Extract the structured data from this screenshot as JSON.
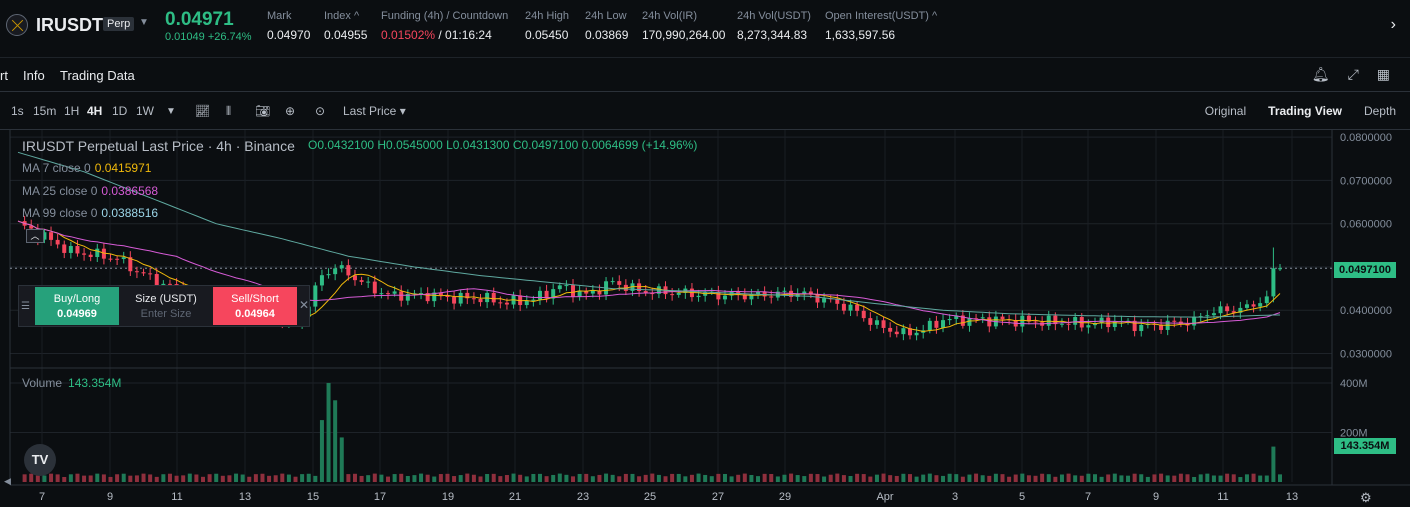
{
  "ticker": {
    "symbol": "IRUSDT",
    "badge": "Perp",
    "last_price": "0.04971",
    "change": "0.01049 +26.74%",
    "stats": [
      {
        "label": "Mark",
        "value": "0.04970"
      },
      {
        "label": "Index ^",
        "value": "0.04955"
      },
      {
        "label": "Funding (4h) / Countdown",
        "value_red": "0.01502%",
        "value": " / 01:16:24"
      },
      {
        "label": "24h High",
        "value": "0.05450"
      },
      {
        "label": "24h Low",
        "value": "0.03869"
      },
      {
        "label": "24h Vol(IR)",
        "value": "170,990,264.00"
      },
      {
        "label": "24h Vol(USDT)",
        "value": "8,273,344.83"
      },
      {
        "label": "Open Interest(USDT) ^",
        "value": "1,633,597.56"
      }
    ]
  },
  "tabs": [
    "rt",
    "Info",
    "Trading Data"
  ],
  "toolbar": {
    "intervals": [
      "1s",
      "15m",
      "1H",
      "4H",
      "1D",
      "1W"
    ],
    "active_interval": "4H",
    "price_type": "Last Price ▾",
    "views": [
      "Original",
      "Trading View",
      "Depth"
    ],
    "active_view": "Trading View"
  },
  "legend": {
    "title": "IRUSDT Perpetual Last Price · 4h · Binance",
    "ohlc": "O0.0432100 H0.0545000 L0.0431300 C0.0497100 0.0064699 (+14.96%)",
    "ma": [
      {
        "label": "MA 7 close 0",
        "value": "0.0415971",
        "color": "#f0b90b"
      },
      {
        "label": "MA 25 close 0",
        "value": "0.0386568",
        "color": "#d65bd6"
      },
      {
        "label": "MA 99 close 0",
        "value": "0.0388516",
        "color": "#9bd5e8"
      }
    ]
  },
  "volume": {
    "label": "Volume",
    "value": "143.354M"
  },
  "price_tag": "0.0497100",
  "vol_tag": "143.354M",
  "quick_order": {
    "buy_label": "Buy/Long",
    "buy_price": "0.04969",
    "size_label": "Size (USDT)",
    "size_placeholder": "Enter Size",
    "sell_label": "Sell/Short",
    "sell_price": "0.04964"
  },
  "tv_logo": "TV",
  "chart_data": {
    "type": "candlestick",
    "y_ticks": [
      "0.0800000",
      "0.0700000",
      "0.0600000",
      "0.0500000",
      "0.0400000",
      "0.0300000"
    ],
    "y_tick_values": [
      0.08,
      0.07,
      0.06,
      0.05,
      0.04,
      0.03
    ],
    "vol_ticks": [
      "400M",
      "200M"
    ],
    "vol_tick_values": [
      400,
      200
    ],
    "x_labels": [
      "7",
      "9",
      "11",
      "13",
      "15",
      "17",
      "19",
      "21",
      "23",
      "25",
      "27",
      "29",
      "Apr",
      "3",
      "5",
      "7",
      "9",
      "11",
      "13"
    ],
    "close_anchors": [
      [
        0,
        0.06
      ],
      [
        4,
        0.057
      ],
      [
        8,
        0.0535
      ],
      [
        12,
        0.0528
      ],
      [
        15,
        0.052
      ],
      [
        18,
        0.049
      ],
      [
        22,
        0.046
      ],
      [
        26,
        0.044
      ],
      [
        30,
        0.0425
      ],
      [
        34,
        0.0435
      ],
      [
        38,
        0.0395
      ],
      [
        42,
        0.0365
      ],
      [
        44,
        0.0415
      ],
      [
        46,
        0.048
      ],
      [
        48,
        0.05
      ],
      [
        50,
        0.0485
      ],
      [
        53,
        0.0455
      ],
      [
        56,
        0.0435
      ],
      [
        62,
        0.0435
      ],
      [
        66,
        0.0428
      ],
      [
        70,
        0.0428
      ],
      [
        74,
        0.0418
      ],
      [
        78,
        0.0425
      ],
      [
        82,
        0.0455
      ],
      [
        86,
        0.0435
      ],
      [
        90,
        0.0465
      ],
      [
        94,
        0.0445
      ],
      [
        100,
        0.044
      ],
      [
        106,
        0.0435
      ],
      [
        112,
        0.0435
      ],
      [
        118,
        0.044
      ],
      [
        122,
        0.0425
      ],
      [
        126,
        0.0405
      ],
      [
        130,
        0.0365
      ],
      [
        134,
        0.0345
      ],
      [
        137,
        0.0355
      ],
      [
        140,
        0.0378
      ],
      [
        146,
        0.0378
      ],
      [
        152,
        0.0375
      ],
      [
        158,
        0.0372
      ],
      [
        162,
        0.0368
      ],
      [
        166,
        0.0375
      ],
      [
        170,
        0.0362
      ],
      [
        174,
        0.0368
      ],
      [
        178,
        0.0375
      ],
      [
        180,
        0.0395
      ],
      [
        183,
        0.04
      ],
      [
        186,
        0.0405
      ],
      [
        189,
        0.0432
      ],
      [
        190,
        0.0497
      ]
    ],
    "ma99_anchors": [
      [
        0,
        0.0765
      ],
      [
        10,
        0.072
      ],
      [
        20,
        0.066
      ],
      [
        30,
        0.06
      ],
      [
        40,
        0.0565
      ],
      [
        50,
        0.0525
      ],
      [
        60,
        0.05
      ],
      [
        70,
        0.048
      ],
      [
        80,
        0.0465
      ],
      [
        90,
        0.045
      ],
      [
        100,
        0.0445
      ],
      [
        110,
        0.0438
      ],
      [
        120,
        0.0432
      ],
      [
        130,
        0.0415
      ],
      [
        140,
        0.04
      ],
      [
        150,
        0.0392
      ],
      [
        160,
        0.0388
      ],
      [
        170,
        0.0385
      ],
      [
        180,
        0.0384
      ],
      [
        190,
        0.0389
      ]
    ],
    "volume_spikes": [
      [
        46,
        250
      ],
      [
        47,
        400
      ],
      [
        48,
        330
      ],
      [
        49,
        180
      ],
      [
        190,
        143
      ]
    ],
    "volume_base": 20
  }
}
